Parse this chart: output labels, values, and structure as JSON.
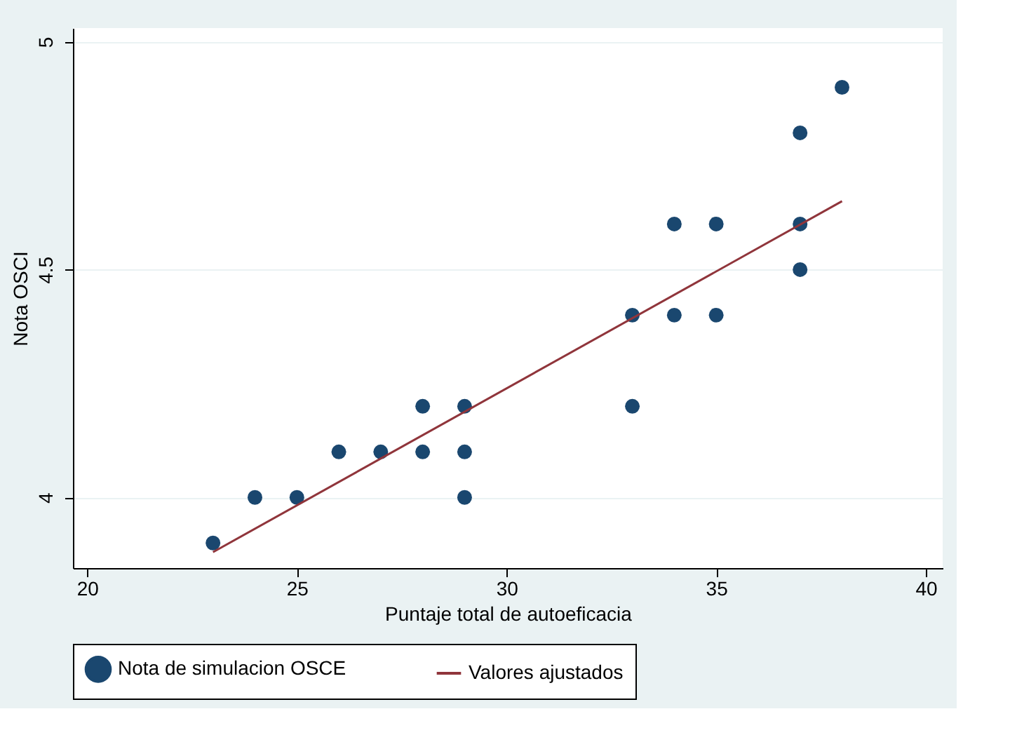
{
  "chart_data": {
    "type": "scatter",
    "xlabel": "Puntaje total de autoeficacia",
    "ylabel": "Nota OSCI",
    "series": [
      {
        "name": "Nota de simulacion OSCE",
        "marker": "circle",
        "color": "#1a476f",
        "x": [
          23,
          24,
          25,
          26,
          27,
          28,
          28,
          29,
          29,
          29,
          33,
          33,
          34,
          34,
          35,
          35,
          37,
          37,
          37,
          38
        ],
        "values": [
          3.9,
          4.0,
          4.0,
          4.1,
          4.1,
          4.2,
          4.1,
          4.2,
          4.1,
          4.0,
          4.4,
          4.2,
          4.6,
          4.4,
          4.6,
          4.4,
          4.8,
          4.6,
          4.5,
          4.9
        ]
      },
      {
        "name": "Valores ajustados",
        "type": "line",
        "marker": "none",
        "color": "#90353b",
        "x": [
          23,
          38
        ],
        "values": [
          3.88,
          4.65
        ]
      }
    ],
    "xlim": [
      19.66,
      40.4
    ],
    "ylim": [
      3.845,
      5.03
    ],
    "xticks": [
      20,
      25,
      30,
      35,
      40
    ],
    "yticks": [
      {
        "value": 4,
        "label": "4"
      },
      {
        "value": 4.5,
        "label": "4.5"
      },
      {
        "value": 5,
        "label": "5"
      }
    ],
    "grid": "y",
    "legend": "bottom"
  }
}
